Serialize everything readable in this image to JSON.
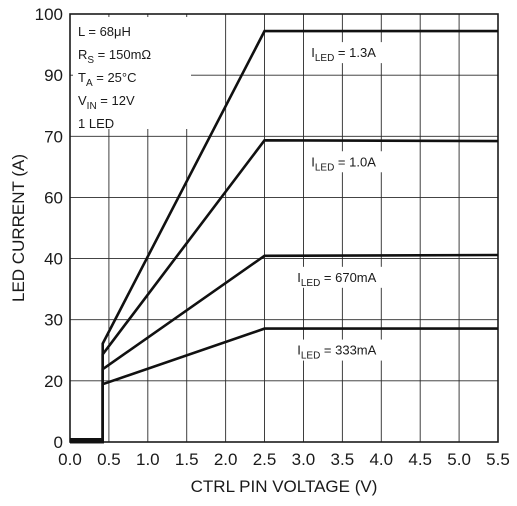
{
  "chart_data": {
    "type": "line",
    "title": "",
    "xlabel": "CTRL PIN VOLTAGE (V)",
    "ylabel": "LED CURRENT (A)",
    "xlim": [
      0,
      5.5
    ],
    "ylim": [
      0,
      100
    ],
    "x_ticks": [
      "0.0",
      "0.5",
      "1.0",
      "1.5",
      "2.0",
      "2.5",
      "3.0",
      "3.5",
      "4.0",
      "4.5",
      "5.0",
      "5.5"
    ],
    "y_ticks": [
      "0",
      "20",
      "30",
      "40",
      "60",
      "70",
      "90",
      "100"
    ],
    "y_tick_values": [
      0,
      20,
      30,
      40,
      60,
      70,
      90,
      100
    ],
    "grid": true,
    "conditions": [
      {
        "main": "L = 68μH",
        "sub": "",
        "tail": ""
      },
      {
        "main": "R",
        "sub": "S",
        "tail": " = 150mΩ"
      },
      {
        "main": "T",
        "sub": "A",
        "tail": " = 25°C"
      },
      {
        "main": "V",
        "sub": "IN",
        "tail": " = 12V"
      },
      {
        "main": "1 LED",
        "sub": "",
        "tail": ""
      }
    ],
    "series": [
      {
        "label_main": "I",
        "label_sub": "LED",
        "label_tail": " = 1.3A",
        "x": [
          0,
          0.42,
          0.42,
          2.5,
          5.5
        ],
        "y": [
          0,
          0,
          23,
          96,
          96
        ],
        "color": "#111111"
      },
      {
        "label_main": "I",
        "label_sub": "LED",
        "label_tail": " = 1.0A",
        "x": [
          0,
          0.42,
          0.42,
          2.5,
          5.5
        ],
        "y": [
          0,
          0,
          20.5,
          70.5,
          70.3
        ],
        "color": "#111111"
      },
      {
        "label_main": "I",
        "label_sub": "LED",
        "label_tail": " = 670mA",
        "x": [
          0,
          0.42,
          0.42,
          2.5,
          5.5
        ],
        "y": [
          0,
          0,
          17,
          43.5,
          43.7
        ],
        "color": "#111111"
      },
      {
        "label_main": "I",
        "label_sub": "LED",
        "label_tail": " = 333mA",
        "x": [
          0,
          0.42,
          0.42,
          2.5,
          5.5
        ],
        "y": [
          0,
          0,
          13.5,
          26.5,
          26.5
        ],
        "color": "#111111"
      }
    ]
  }
}
